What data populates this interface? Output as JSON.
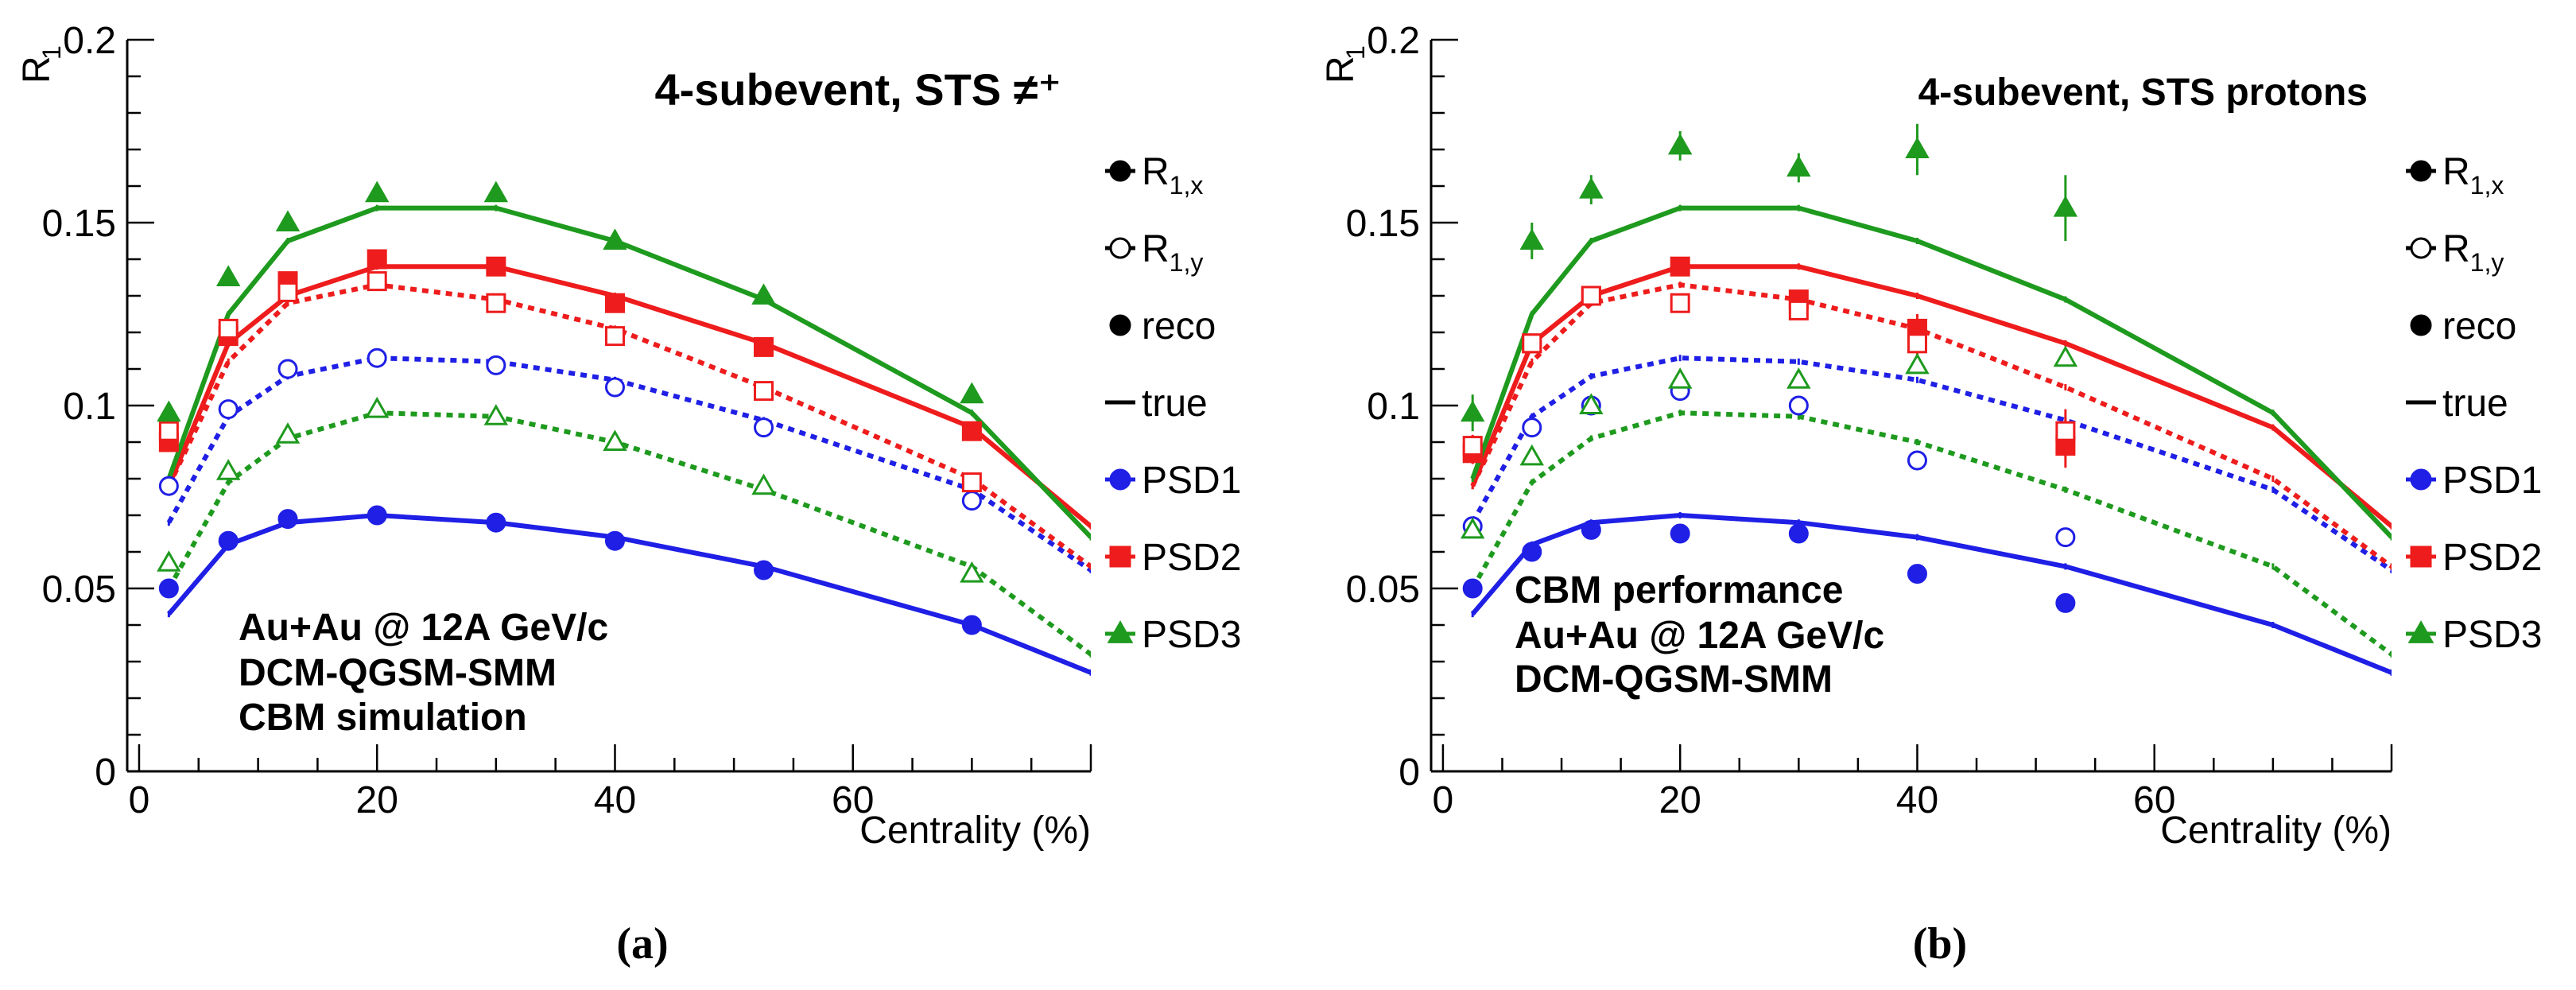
{
  "figure": {
    "captions": [
      "(a)",
      "(b)"
    ],
    "legend": {
      "entries": [
        {
          "label": "R",
          "sub": "1,x",
          "marker": "filled-circle",
          "line": true
        },
        {
          "label": "R",
          "sub": "1,y",
          "marker": "open-circle",
          "line": true
        },
        {
          "label": "reco",
          "marker": "filled-circle",
          "line": false
        },
        {
          "label": "true",
          "marker": "none",
          "line": true
        },
        {
          "label": "PSD1",
          "marker": "filled-circle",
          "line": true,
          "color": "#1f1fe6"
        },
        {
          "label": "PSD2",
          "marker": "filled-square",
          "line": true,
          "color": "#ee1c1c"
        },
        {
          "label": "PSD3",
          "marker": "filled-triangle",
          "line": true,
          "color": "#1e9a1e"
        }
      ]
    },
    "colors": {
      "PSD1": "#1f1fe6",
      "PSD2": "#ee1c1c",
      "PSD3": "#1e9a1e"
    }
  },
  "chart_data": [
    {
      "type": "line",
      "panel": "a",
      "title": "4-subevent, STS ≠⁺",
      "xlabel": "Centrality (%)",
      "ylabel": "R",
      "ylabel_sub": "1",
      "xlim": [
        -1,
        80
      ],
      "ylim": [
        0,
        0.2
      ],
      "xticks": [
        0,
        20,
        40,
        60
      ],
      "yticks": [
        0,
        0.05,
        0.1,
        0.15,
        0.2
      ],
      "yticklabels": [
        "0",
        "0.05",
        "0.1",
        "0.15",
        "0.2"
      ],
      "annotation": [
        "Au+Au @ 12A GeV/c",
        "DCM-QGSM-SMM",
        "CBM simulation"
      ],
      "series": [
        {
          "name": "PSD1 true R1,x",
          "color": "PSD1",
          "style": "solid",
          "kind": "true",
          "x": [
            2.5,
            7.5,
            12.5,
            20,
            30,
            40,
            52.5,
            70,
            80
          ],
          "y": [
            0.043,
            0.062,
            0.068,
            0.07,
            0.068,
            0.064,
            0.056,
            0.04,
            0.027
          ]
        },
        {
          "name": "PSD1 true R1,y",
          "color": "PSD1",
          "style": "dotted",
          "kind": "true",
          "x": [
            2.5,
            7.5,
            12.5,
            20,
            30,
            40,
            52.5,
            70,
            80
          ],
          "y": [
            0.068,
            0.097,
            0.108,
            0.113,
            0.112,
            0.107,
            0.096,
            0.077,
            0.055
          ]
        },
        {
          "name": "PSD2 true R1,x",
          "color": "PSD2",
          "style": "solid",
          "kind": "true",
          "x": [
            2.5,
            7.5,
            12.5,
            20,
            30,
            40,
            52.5,
            70,
            80
          ],
          "y": [
            0.078,
            0.117,
            0.13,
            0.138,
            0.138,
            0.13,
            0.117,
            0.094,
            0.067
          ]
        },
        {
          "name": "PSD2 true R1,y",
          "color": "PSD2",
          "style": "dotted",
          "kind": "true",
          "x": [
            2.5,
            7.5,
            12.5,
            20,
            30,
            40,
            52.5,
            70,
            80
          ],
          "y": [
            0.078,
            0.112,
            0.128,
            0.133,
            0.129,
            0.121,
            0.105,
            0.08,
            0.056
          ]
        },
        {
          "name": "PSD3 true R1,x",
          "color": "PSD3",
          "style": "solid",
          "kind": "true",
          "x": [
            2.5,
            7.5,
            12.5,
            20,
            30,
            40,
            52.5,
            70,
            80
          ],
          "y": [
            0.08,
            0.125,
            0.145,
            0.154,
            0.154,
            0.145,
            0.129,
            0.098,
            0.064
          ]
        },
        {
          "name": "PSD3 true R1,y",
          "color": "PSD3",
          "style": "dotted",
          "kind": "true",
          "x": [
            2.5,
            7.5,
            12.5,
            20,
            30,
            40,
            52.5,
            70,
            80
          ],
          "y": [
            0.05,
            0.079,
            0.091,
            0.098,
            0.097,
            0.09,
            0.077,
            0.056,
            0.032
          ]
        },
        {
          "name": "PSD1 reco R1,x",
          "color": "PSD1",
          "marker": "circle",
          "fill": true,
          "kind": "reco",
          "x": [
            2.5,
            7.5,
            12.5,
            20,
            30,
            40,
            52.5,
            70
          ],
          "y": [
            0.05,
            0.063,
            0.069,
            0.07,
            0.068,
            0.063,
            0.055,
            0.04
          ]
        },
        {
          "name": "PSD1 reco R1,y",
          "color": "PSD1",
          "marker": "circle",
          "fill": false,
          "kind": "reco",
          "x": [
            2.5,
            7.5,
            12.5,
            20,
            30,
            40,
            52.5,
            70
          ],
          "y": [
            0.078,
            0.099,
            0.11,
            0.113,
            0.111,
            0.105,
            0.094,
            0.074
          ]
        },
        {
          "name": "PSD2 reco R1,x",
          "color": "PSD2",
          "marker": "square",
          "fill": true,
          "kind": "reco",
          "x": [
            2.5,
            7.5,
            12.5,
            20,
            30,
            40,
            52.5,
            70
          ],
          "y": [
            0.09,
            0.119,
            0.134,
            0.14,
            0.138,
            0.128,
            0.116,
            0.093
          ]
        },
        {
          "name": "PSD2 reco R1,y",
          "color": "PSD2",
          "marker": "square",
          "fill": false,
          "kind": "reco",
          "x": [
            2.5,
            7.5,
            12.5,
            20,
            30,
            40,
            52.5,
            70
          ],
          "y": [
            0.093,
            0.121,
            0.131,
            0.134,
            0.128,
            0.119,
            0.104,
            0.079
          ]
        },
        {
          "name": "PSD3 reco R1,x",
          "color": "PSD3",
          "marker": "triangle",
          "fill": true,
          "kind": "reco",
          "x": [
            2.5,
            7.5,
            12.5,
            20,
            30,
            40,
            52.5,
            70
          ],
          "y": [
            0.098,
            0.135,
            0.15,
            0.158,
            0.158,
            0.145,
            0.13,
            0.103
          ]
        },
        {
          "name": "PSD3 reco R1,y",
          "color": "PSD3",
          "marker": "triangle",
          "fill": false,
          "kind": "reco",
          "x": [
            2.5,
            7.5,
            12.5,
            20,
            30,
            40,
            52.5,
            70
          ],
          "y": [
            0.057,
            0.082,
            0.092,
            0.099,
            0.097,
            0.09,
            0.078,
            0.054
          ]
        }
      ]
    },
    {
      "type": "line",
      "panel": "b",
      "title": "4-subevent, STS protons",
      "xlabel": "Centrality (%)",
      "ylabel": "R",
      "ylabel_sub": "1",
      "xlim": [
        -1,
        80
      ],
      "ylim": [
        0,
        0.2
      ],
      "xticks": [
        0,
        20,
        40,
        60
      ],
      "yticks": [
        0,
        0.05,
        0.1,
        0.15,
        0.2
      ],
      "yticklabels": [
        "0",
        "0.05",
        "0.1",
        "0.15",
        "0.2"
      ],
      "annotation": [
        "CBM performance",
        "Au+Au @ 12A GeV/c",
        "DCM-QGSM-SMM"
      ],
      "series": [
        {
          "name": "PSD1 true R1,x",
          "color": "PSD1",
          "style": "solid",
          "kind": "true",
          "x": [
            2.5,
            7.5,
            12.5,
            20,
            30,
            40,
            52.5,
            70,
            80
          ],
          "y": [
            0.043,
            0.062,
            0.068,
            0.07,
            0.068,
            0.064,
            0.056,
            0.04,
            0.027
          ]
        },
        {
          "name": "PSD1 true R1,y",
          "color": "PSD1",
          "style": "dotted",
          "kind": "true",
          "x": [
            2.5,
            7.5,
            12.5,
            20,
            30,
            40,
            52.5,
            70,
            80
          ],
          "y": [
            0.068,
            0.097,
            0.108,
            0.113,
            0.112,
            0.107,
            0.096,
            0.077,
            0.055
          ]
        },
        {
          "name": "PSD2 true R1,x",
          "color": "PSD2",
          "style": "solid",
          "kind": "true",
          "x": [
            2.5,
            7.5,
            12.5,
            20,
            30,
            40,
            52.5,
            70,
            80
          ],
          "y": [
            0.078,
            0.117,
            0.13,
            0.138,
            0.138,
            0.13,
            0.117,
            0.094,
            0.067
          ]
        },
        {
          "name": "PSD2 true R1,y",
          "color": "PSD2",
          "style": "dotted",
          "kind": "true",
          "x": [
            2.5,
            7.5,
            12.5,
            20,
            30,
            40,
            52.5,
            70,
            80
          ],
          "y": [
            0.078,
            0.112,
            0.128,
            0.133,
            0.129,
            0.121,
            0.105,
            0.08,
            0.056
          ]
        },
        {
          "name": "PSD3 true R1,x",
          "color": "PSD3",
          "style": "solid",
          "kind": "true",
          "x": [
            2.5,
            7.5,
            12.5,
            20,
            30,
            40,
            52.5,
            70,
            80
          ],
          "y": [
            0.08,
            0.125,
            0.145,
            0.154,
            0.154,
            0.145,
            0.129,
            0.098,
            0.064
          ]
        },
        {
          "name": "PSD3 true R1,y",
          "color": "PSD3",
          "style": "dotted",
          "kind": "true",
          "x": [
            2.5,
            7.5,
            12.5,
            20,
            30,
            40,
            52.5,
            70,
            80
          ],
          "y": [
            0.05,
            0.079,
            0.091,
            0.098,
            0.097,
            0.09,
            0.077,
            0.056,
            0.032
          ]
        },
        {
          "name": "PSD1 reco R1,x",
          "color": "PSD1",
          "marker": "circle",
          "fill": true,
          "kind": "reco",
          "x": [
            2.5,
            7.5,
            12.5,
            20,
            30,
            40,
            52.5
          ],
          "y": [
            0.05,
            0.06,
            0.066,
            0.065,
            0.065,
            0.054,
            0.046
          ],
          "err": [
            0.001,
            0.001,
            0.001,
            0.001,
            0.001,
            0.001,
            0.001
          ]
        },
        {
          "name": "PSD1 reco R1,y",
          "color": "PSD1",
          "marker": "circle",
          "fill": false,
          "kind": "reco",
          "x": [
            2.5,
            7.5,
            12.5,
            20,
            30,
            40,
            52.5
          ],
          "y": [
            0.067,
            0.094,
            0.1,
            0.104,
            0.1,
            0.085,
            0.064
          ],
          "err": [
            0.001,
            0.001,
            0.001,
            0.001,
            0.001,
            0.001,
            0.001
          ]
        },
        {
          "name": "PSD2 reco R1,x",
          "color": "PSD2",
          "marker": "square",
          "fill": true,
          "kind": "reco",
          "x": [
            2.5,
            7.5,
            12.5,
            20,
            30,
            40,
            52.5
          ],
          "y": [
            0.087,
            0.117,
            0.13,
            0.138,
            0.129,
            0.121,
            0.089
          ],
          "err": [
            0.003,
            0.002,
            0.002,
            0.002,
            0.002,
            0.004,
            0.006
          ]
        },
        {
          "name": "PSD2 reco R1,y",
          "color": "PSD2",
          "marker": "square",
          "fill": false,
          "kind": "reco",
          "x": [
            2.5,
            7.5,
            12.5,
            20,
            30,
            40,
            52.5
          ],
          "y": [
            0.089,
            0.117,
            0.13,
            0.128,
            0.126,
            0.117,
            0.093
          ],
          "err": [
            0.003,
            0.002,
            0.002,
            0.002,
            0.002,
            0.004,
            0.006
          ]
        },
        {
          "name": "PSD3 reco R1,x",
          "color": "PSD3",
          "marker": "triangle",
          "fill": true,
          "kind": "reco",
          "x": [
            2.5,
            7.5,
            12.5,
            20,
            30,
            40,
            52.5
          ],
          "y": [
            0.098,
            0.145,
            0.159,
            0.171,
            0.165,
            0.17,
            0.154
          ],
          "err": [
            0.005,
            0.005,
            0.004,
            0.004,
            0.004,
            0.007,
            0.009
          ]
        },
        {
          "name": "PSD3 reco R1,y",
          "color": "PSD3",
          "marker": "triangle",
          "fill": false,
          "kind": "reco",
          "x": [
            2.5,
            7.5,
            12.5,
            20,
            30,
            40,
            52.5
          ],
          "y": [
            0.066,
            0.086,
            0.1,
            0.107,
            0.107,
            0.111,
            0.113
          ],
          "err": [
            0.001,
            0.001,
            0.001,
            0.001,
            0.001,
            0.001,
            0.001
          ]
        }
      ]
    }
  ]
}
